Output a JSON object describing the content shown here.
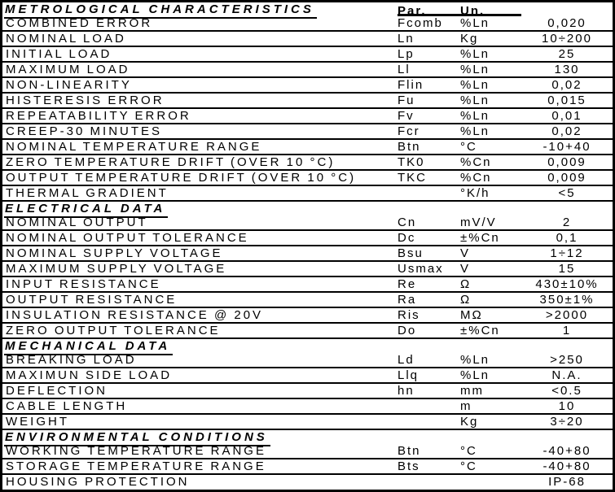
{
  "document": {
    "colors": {
      "text": "#000000",
      "background": "#ffffff",
      "lines": "#000000"
    },
    "col_headers": {
      "par": "Par.",
      "un": "Un."
    },
    "sections": [
      {
        "title": "METROLOGICAL CHARACTERISTICS",
        "rows": [
          {
            "label": "COMBINED ERROR",
            "par": "Fcomb",
            "un": "%Ln",
            "value": "0,020"
          },
          {
            "label": "NOMINAL LOAD",
            "par": "Ln",
            "un": "Kg",
            "value": "10÷200"
          },
          {
            "label": "INITIAL LOAD",
            "par": "Lp",
            "un": "%Ln",
            "value": "25"
          },
          {
            "label": "MAXIMUM LOAD",
            "par": "Ll",
            "un": "%Ln",
            "value": "130"
          },
          {
            "label": "NON-LINEARITY",
            "par": "Flin",
            "un": "%Ln",
            "value": "0,02"
          },
          {
            "label": "HISTERESIS ERROR",
            "par": "Fu",
            "un": "%Ln",
            "value": "0,015"
          },
          {
            "label": "REPEATABILITY ERROR",
            "par": "Fv",
            "un": "%Ln",
            "value": "0,01"
          },
          {
            "label": "CREEP-30 MINUTES",
            "par": "Fcr",
            "un": "%Ln",
            "value": "0,02"
          },
          {
            "label": "NOMINAL TEMPERATURE RANGE",
            "par": "Btn",
            "un": "°C",
            "value": "-10+40"
          },
          {
            "label": "ZERO TEMPERATURE DRIFT (OVER 10 °C)",
            "par": "TK0",
            "un": "%Cn",
            "value": "0,009"
          },
          {
            "label": "OUTPUT TEMPERATURE DRIFT (OVER 10 °C)",
            "par": "TKC",
            "un": "%Cn",
            "value": "0,009"
          },
          {
            "label": "THERMAL GRADIENT",
            "par": "",
            "un": "°K/h",
            "value": "<5"
          }
        ]
      },
      {
        "title": "ELECTRICAL DATA",
        "rows": [
          {
            "label": "NOMINAL OUTPUT",
            "par": "Cn",
            "un": "mV/V",
            "value": "2"
          },
          {
            "label": "NOMINAL OUTPUT TOLERANCE",
            "par": "Dc",
            "un": "±%Cn",
            "value": "0,1"
          },
          {
            "label": "NOMINAL SUPPLY VOLTAGE",
            "par": "Bsu",
            "un": "V",
            "value": "1÷12"
          },
          {
            "label": "MAXIMUM SUPPLY VOLTAGE",
            "par": "Usmax",
            "un": "V",
            "value": "15"
          },
          {
            "label": "INPUT RESISTANCE",
            "par": "Re",
            "un": "Ω",
            "value": "430±10%"
          },
          {
            "label": "OUTPUT RESISTANCE",
            "par": "Ra",
            "un": "Ω",
            "value": "350±1%"
          },
          {
            "label": "INSULATION RESISTANCE @ 20V",
            "par": "Ris",
            "un": "MΩ",
            "value": ">2000"
          },
          {
            "label": "ZERO OUTPUT TOLERANCE",
            "par": "Do",
            "un": "±%Cn",
            "value": "1"
          }
        ]
      },
      {
        "title": "MECHANICAL DATA",
        "rows": [
          {
            "label": "BREAKING LOAD",
            "par": "Ld",
            "un": "%Ln",
            "value": ">250"
          },
          {
            "label": "MAXIMUN SIDE LOAD",
            "par": "Llq",
            "un": "%Ln",
            "value": "N.A."
          },
          {
            "label": "DEFLECTION",
            "par": "hn",
            "un": "mm",
            "value": "<0.5"
          },
          {
            "label": "CABLE LENGTH",
            "par": "",
            "un": "m",
            "value": "10"
          },
          {
            "label": "WEIGHT",
            "par": "",
            "un": "Kg",
            "value": "3÷20"
          }
        ]
      },
      {
        "title": "ENVIRONMENTAL CONDITIONS",
        "rows": [
          {
            "label": "WORKING TEMPERATURE RANGE",
            "par": "Btn",
            "un": "°C",
            "value": "-40+80"
          },
          {
            "label": "STORAGE TEMPERATURE RANGE",
            "par": "Bts",
            "un": "°C",
            "value": "-40+80"
          },
          {
            "label": "HOUSING PROTECTION",
            "par": "",
            "un": "",
            "value": "IP-68"
          }
        ]
      }
    ]
  }
}
